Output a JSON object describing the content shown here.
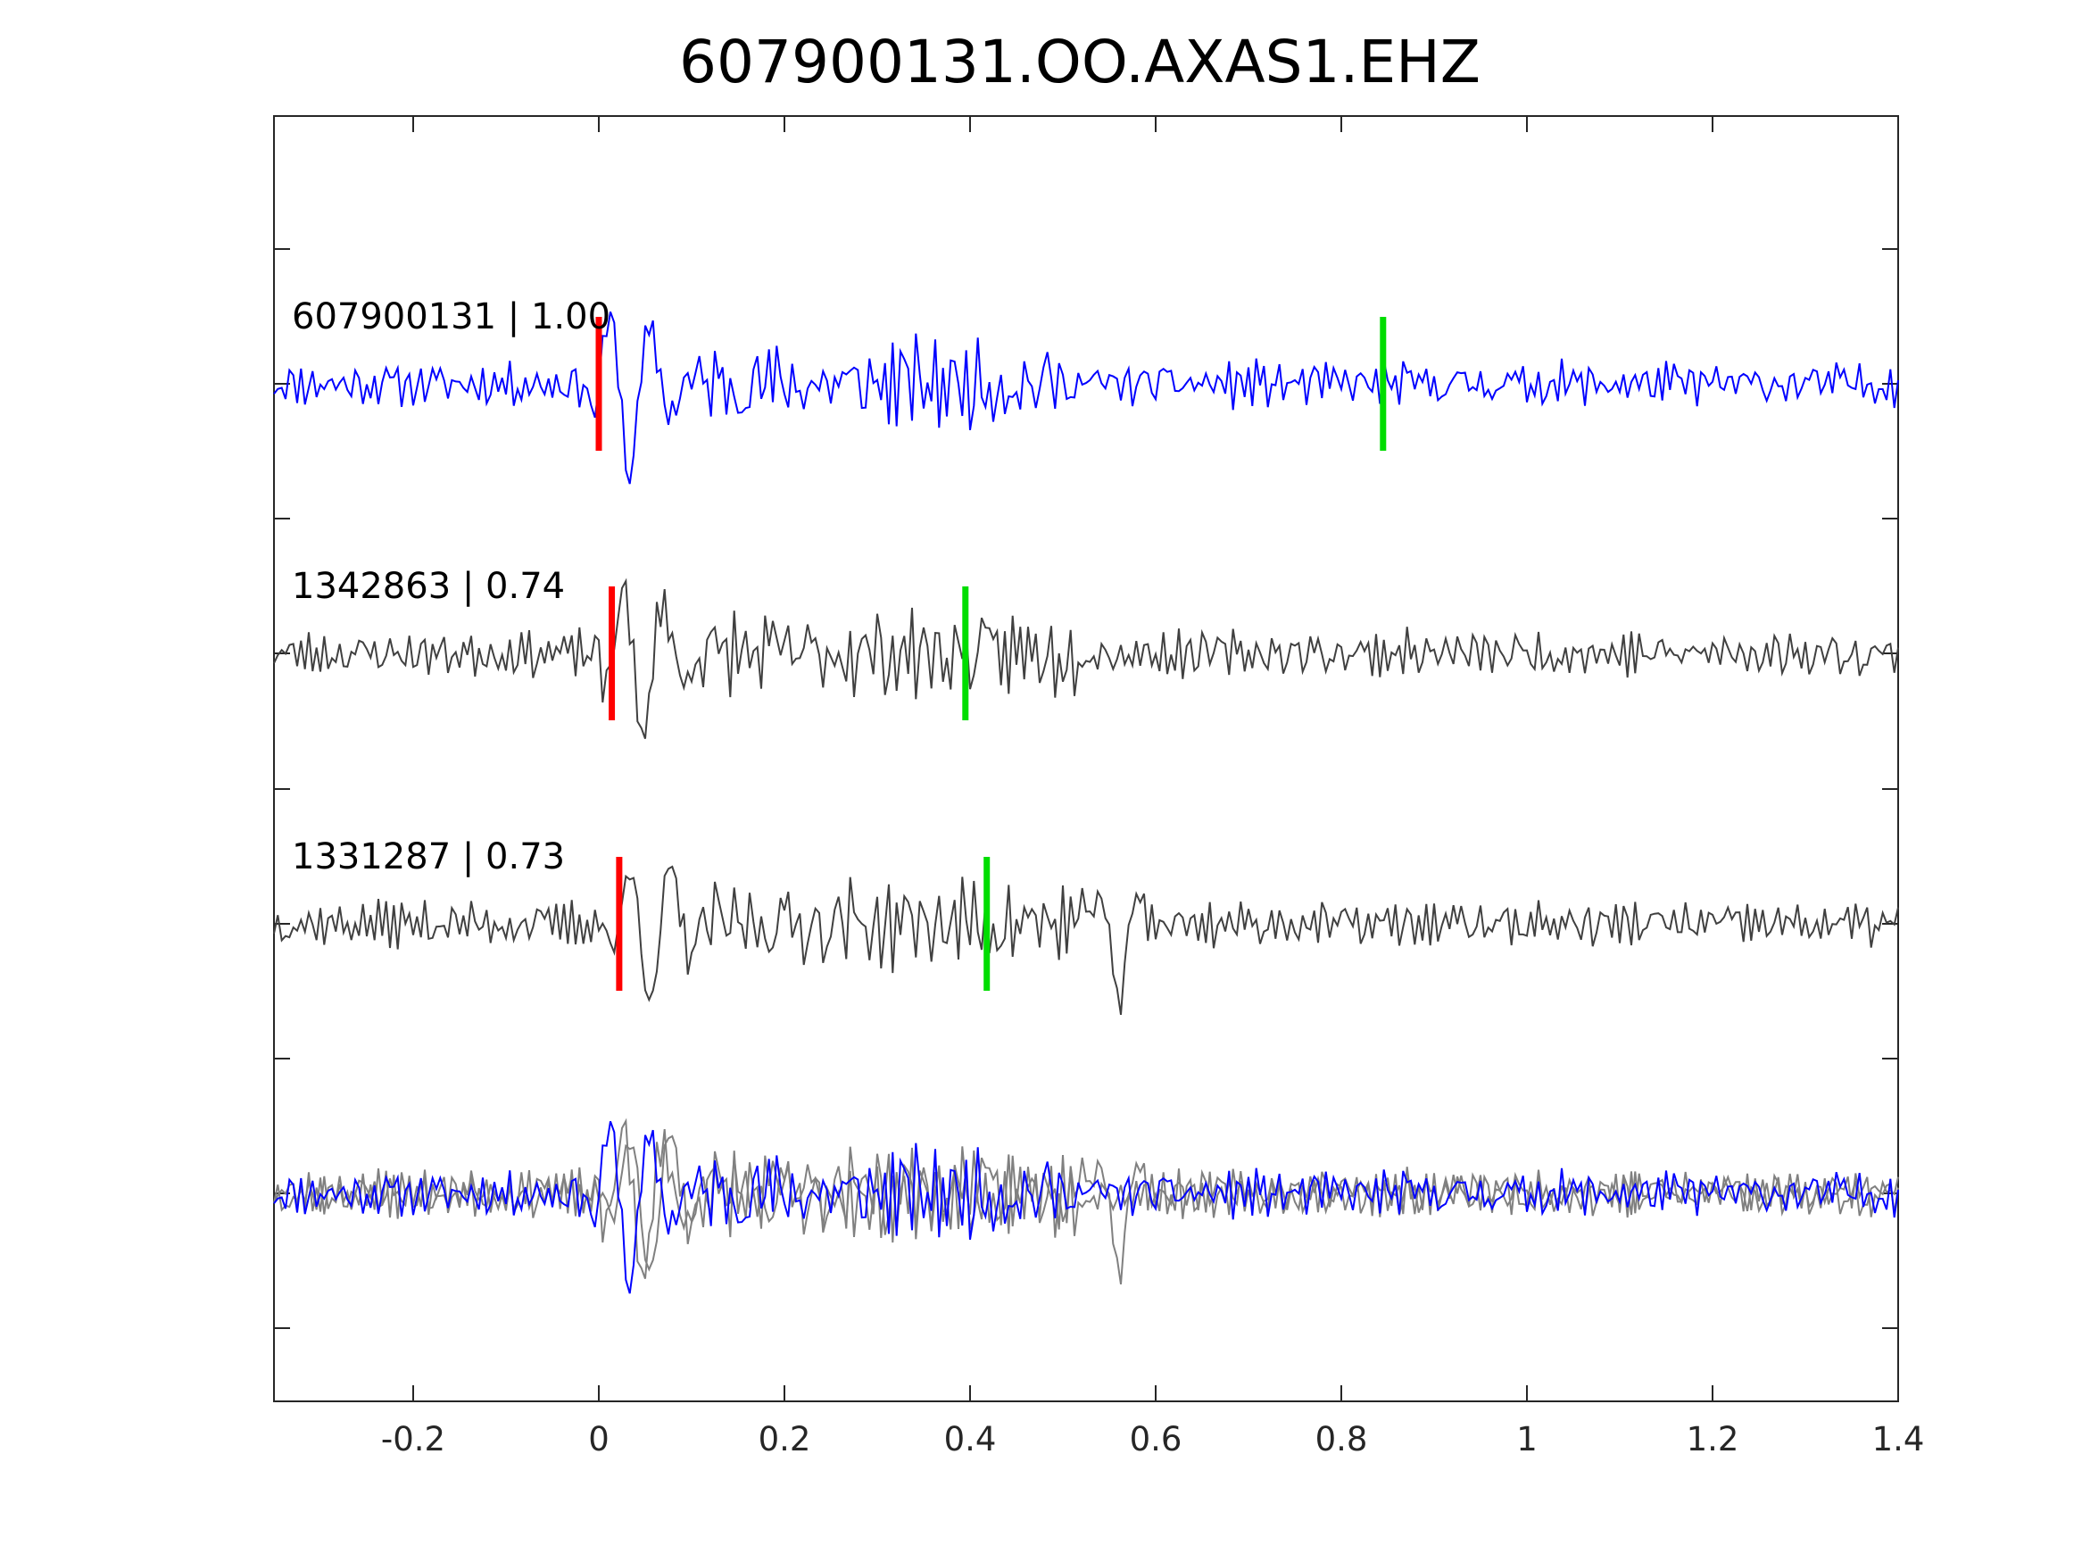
{
  "chart_data": {
    "type": "line",
    "title": "607900131.OO.AXAS1.EHZ",
    "xlim": [
      -0.35,
      1.4
    ],
    "xticks": [
      {
        "value": -0.2,
        "label": "-0.2"
      },
      {
        "value": 0,
        "label": "0"
      },
      {
        "value": 0.2,
        "label": "0.2"
      },
      {
        "value": 0.4,
        "label": "0.4"
      },
      {
        "value": 0.6,
        "label": "0.6"
      },
      {
        "value": 0.8,
        "label": "0.8"
      },
      {
        "value": 1,
        "label": "1"
      },
      {
        "value": 1.2,
        "label": "1.2"
      },
      {
        "value": 1.4,
        "label": "1.4"
      }
    ],
    "yticks": 9,
    "grid": false,
    "colors": {
      "template": "#0000ff",
      "similar": "#404040",
      "overlay_similar": "#808080",
      "p_pick": "#ff0000",
      "s_pick": "#00dd00",
      "axes": "#262626"
    },
    "traces": [
      {
        "event_id": "607900131",
        "correlation": "1.00",
        "label": "607900131 | 1.00",
        "color_key": "template",
        "p_pick_time": 0.0,
        "s_pick_time": 0.845,
        "seed": 11
      },
      {
        "event_id": "1342863",
        "correlation": "0.74",
        "label": "1342863 | 0.74",
        "color_key": "similar",
        "p_pick_time": 0.014,
        "s_pick_time": 0.395,
        "seed": 23
      },
      {
        "event_id": "1331287",
        "correlation": "0.73",
        "label": "1331287 | 0.73",
        "color_key": "similar",
        "p_pick_time": 0.022,
        "s_pick_time": 0.418,
        "seed": 37
      }
    ],
    "overlay": {
      "description_series": [
        "607900131",
        "1342863",
        "1331287"
      ]
    }
  }
}
